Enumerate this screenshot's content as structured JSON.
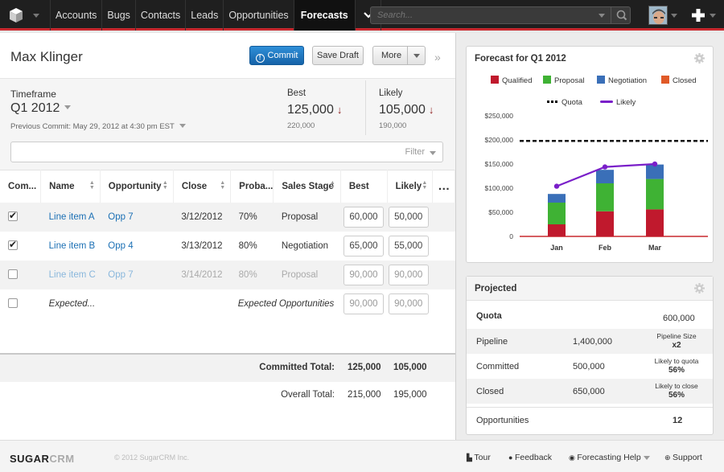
{
  "nav": {
    "items": [
      "Accounts",
      "Bugs",
      "Contacts",
      "Leads",
      "Opportunities",
      "Forecasts"
    ],
    "active": "Forecasts",
    "search_placeholder": "Search..."
  },
  "header": {
    "user_name": "Max Klinger",
    "commit_label": "Commit",
    "save_draft_label": "Save Draft",
    "more_label": "More"
  },
  "summary": {
    "timeframe_label": "Timeframe",
    "timeframe_value": "Q1 2012",
    "previous_commit": "Previous Commit: May 29, 2012 at 4:30 pm EST",
    "best_label": "Best",
    "best_value": "125,000",
    "best_prev": "220,000",
    "likely_label": "Likely",
    "likely_value": "105,000",
    "likely_prev": "190,000"
  },
  "filter_label": "Filter",
  "table": {
    "columns": [
      "Com...",
      "Name",
      "Opportunity",
      "Close",
      "Proba...",
      "Sales Stage",
      "Best",
      "Likely"
    ],
    "rows": [
      {
        "checked": true,
        "name": "Line item A",
        "opp": "Opp 7",
        "close": "3/12/2012",
        "prob": "70%",
        "stage": "Proposal",
        "best": "60,000",
        "likely": "50,000"
      },
      {
        "checked": true,
        "name": "Line item B",
        "opp": "Opp 4",
        "close": "3/13/2012",
        "prob": "80%",
        "stage": "Negotiation",
        "best": "65,000",
        "likely": "55,000"
      },
      {
        "checked": false,
        "name": "Line item C",
        "opp": "Opp 7",
        "close": "3/14/2012",
        "prob": "80%",
        "stage": "Proposal",
        "best": "90,000",
        "likely": "90,000"
      }
    ],
    "expected_label": "Expected...",
    "expected_opps_label": "Expected Opportunities",
    "expected_best": "90,000",
    "expected_likely": "90,000"
  },
  "totals": {
    "committed_label": "Committed Total:",
    "committed_best": "125,000",
    "committed_likely": "105,000",
    "overall_label": "Overall Total:",
    "overall_best": "215,000",
    "overall_likely": "195,000"
  },
  "chart_panel": {
    "title": "Forecast for Q1 2012"
  },
  "chart_data": {
    "type": "bar",
    "categories": [
      "Jan",
      "Feb",
      "Mar"
    ],
    "series": [
      {
        "name": "Qualified",
        "values": [
          25000,
          52000,
          56000
        ],
        "color": "#c0192d"
      },
      {
        "name": "Proposal",
        "values": [
          45000,
          58000,
          63000
        ],
        "color": "#3fb234"
      },
      {
        "name": "Negotiation",
        "values": [
          18000,
          28000,
          30000
        ],
        "color": "#3a6fb8"
      },
      {
        "name": "Closed",
        "values": [
          0,
          0,
          0
        ],
        "color": "#e05a28"
      }
    ],
    "quota": 198000,
    "likely_line": [
      104000,
      144000,
      150000
    ],
    "quota_label": "Quota",
    "likely_label": "Likely",
    "y_ticks": [
      "$250,000",
      "$200,000",
      "$150,000",
      "$100,000",
      "$50,000",
      "0"
    ],
    "ylim": [
      0,
      250000
    ]
  },
  "projected": {
    "title": "Projected",
    "quota_label": "Quota",
    "quota_value": "600,000",
    "rows": [
      {
        "label": "Pipeline",
        "value": "1,400,000",
        "note": "Pipeline Size",
        "note_value": "x2"
      },
      {
        "label": "Committed",
        "value": "500,000",
        "note": "Likely to quota",
        "note_value": "56%"
      },
      {
        "label": "Closed",
        "value": "650,000",
        "note": "Likely to close",
        "note_value": "56%"
      }
    ],
    "opps_label": "Opportunities",
    "opps_value": "12"
  },
  "footer": {
    "brand_a": "SUGAR",
    "brand_b": "CRM",
    "copyright": "© 2012 SugarCRM Inc.",
    "tour": "Tour",
    "feedback": "Feedback",
    "help": "Forecasting Help",
    "support": "Support"
  }
}
